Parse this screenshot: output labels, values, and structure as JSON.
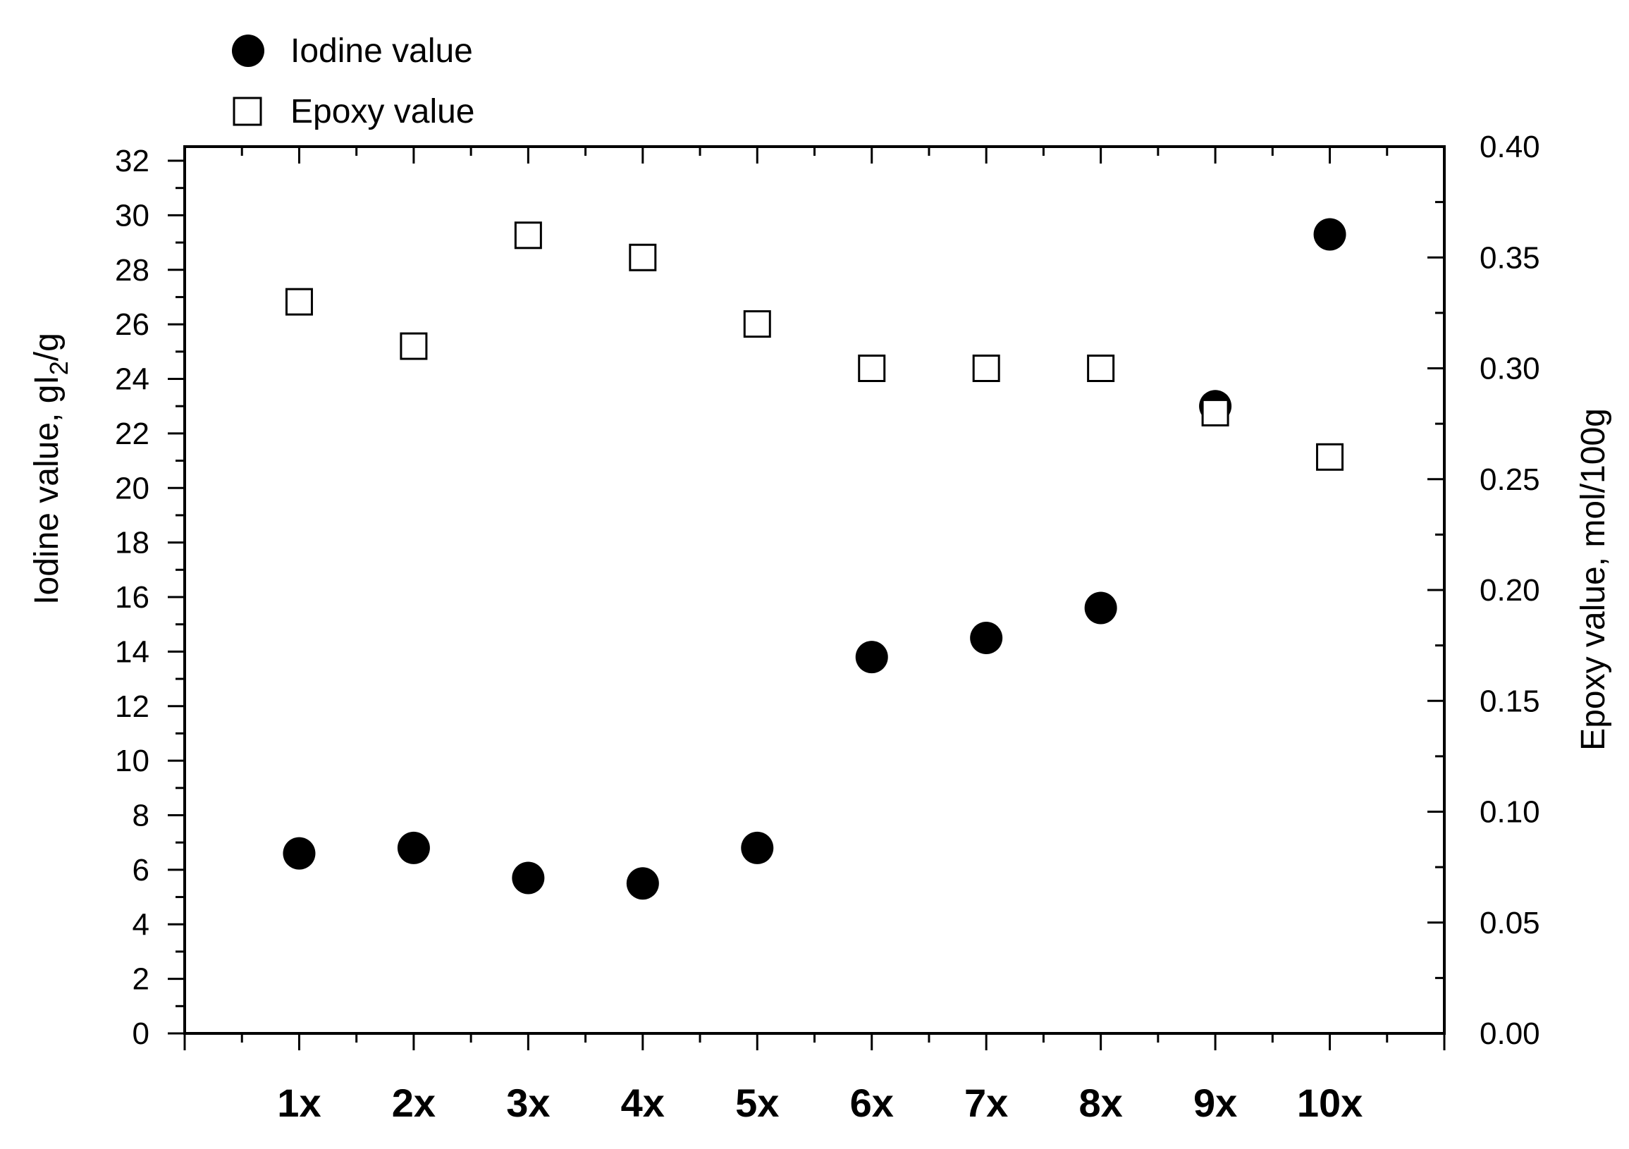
{
  "chart_data": {
    "type": "scatter",
    "categories": [
      "1x",
      "2x",
      "3x",
      "4x",
      "5x",
      "6x",
      "7x",
      "8x",
      "9x",
      "10x"
    ],
    "series": [
      {
        "name": "Iodine value",
        "axis": "left",
        "marker": "filled-circle",
        "values": [
          6.6,
          6.8,
          5.7,
          5.5,
          6.8,
          13.8,
          14.5,
          15.6,
          23.0,
          29.3
        ]
      },
      {
        "name": "Epoxy value",
        "axis": "right",
        "marker": "open-square",
        "values": [
          0.33,
          0.31,
          0.36,
          0.35,
          0.32,
          0.3,
          0.3,
          0.3,
          0.28,
          0.26
        ]
      }
    ],
    "left_axis": {
      "label_main": "Iodine value, gI",
      "label_sub": "2",
      "label_tail": "/g",
      "ylim": [
        0,
        32
      ],
      "ticks": [
        "0",
        "2",
        "4",
        "6",
        "8",
        "10",
        "12",
        "14",
        "16",
        "18",
        "20",
        "22",
        "24",
        "26",
        "28",
        "30",
        "32"
      ]
    },
    "right_axis": {
      "label": "Epoxy value, mol/100g",
      "ylim": [
        0,
        0.4
      ],
      "ticks": [
        "0.00",
        "0.05",
        "0.10",
        "0.15",
        "0.20",
        "0.25",
        "0.30",
        "0.35",
        "0.40"
      ]
    },
    "legend_position": "top-left",
    "grid": false,
    "colors": {
      "marker": "#000000",
      "background": "#ffffff"
    }
  }
}
